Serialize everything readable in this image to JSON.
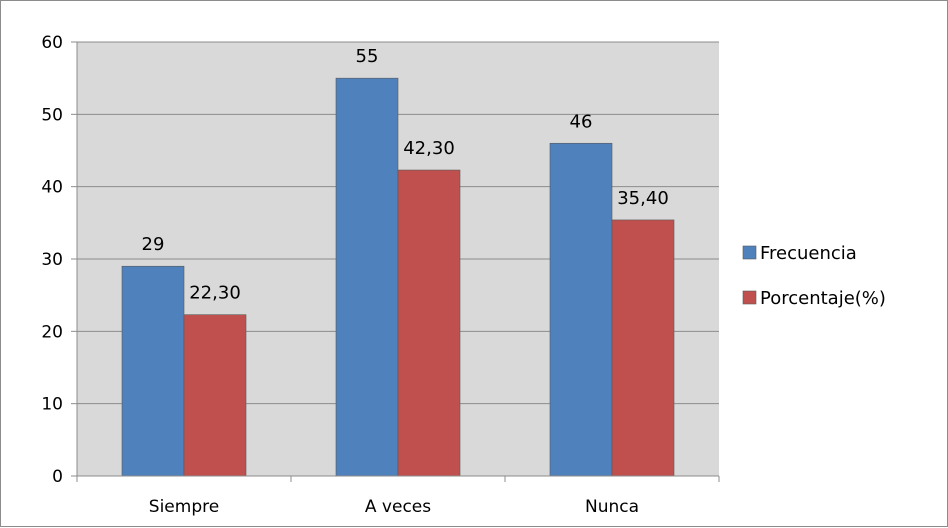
{
  "chart_data": {
    "type": "bar",
    "categories": [
      "Siempre",
      "A veces",
      "Nunca"
    ],
    "series": [
      {
        "name": "Frecuencia",
        "values": [
          29,
          55,
          46
        ],
        "labels": [
          "29",
          "55",
          "46"
        ],
        "color": "#4f81bd"
      },
      {
        "name": "Porcentaje(%)",
        "values": [
          22.3,
          42.3,
          35.4
        ],
        "labels": [
          "22,30",
          "42,30",
          "35,40"
        ],
        "color": "#c0504d"
      }
    ],
    "ylim": [
      0,
      60
    ],
    "yticks": [
      0,
      10,
      20,
      30,
      40,
      50,
      60
    ],
    "grid": true,
    "legend_position": "right",
    "plot_background": "#d9d9d9"
  }
}
